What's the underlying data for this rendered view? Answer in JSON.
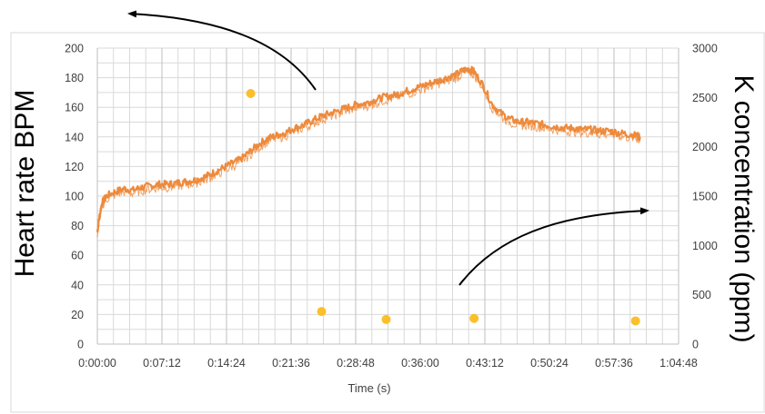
{
  "chart_data": {
    "type": "line",
    "title": "",
    "xlabel": "Time (s)",
    "ylabel_left": "Heart rate BPM",
    "ylabel_right": "K concentration (ppm)",
    "x_ticks": [
      "0:00:00",
      "0:07:12",
      "0:14:24",
      "0:21:36",
      "0:28:48",
      "0:36:00",
      "0:43:12",
      "0:50:24",
      "0:57:36",
      "1:04:48"
    ],
    "y_left_ticks": [
      "0",
      "20",
      "40",
      "60",
      "80",
      "100",
      "120",
      "140",
      "160",
      "180",
      "200"
    ],
    "y_right_ticks": [
      "0",
      "500",
      "1000",
      "1500",
      "2000",
      "2500",
      "3000"
    ],
    "x_unit": "minutes",
    "xlim": [
      0,
      64.8
    ],
    "ylim_left": [
      0,
      200
    ],
    "ylim_right": [
      0,
      3000
    ],
    "grid": true,
    "colors": {
      "heart_rate": "#ed8a3c",
      "k_concentration": "#fbbf2a",
      "grid": "#d9d9d9",
      "arrow": "#000000"
    },
    "series": [
      {
        "axis": "left",
        "style": "line",
        "x": [
          0.0,
          0.2,
          0.5,
          1.0,
          2.0,
          3.0,
          4.0,
          5.0,
          6.0,
          7.0,
          8.0,
          9.0,
          10.0,
          11.0,
          12.0,
          13.0,
          14.0,
          15.0,
          16.0,
          17.0,
          18.0,
          19.0,
          20.0,
          21.0,
          22.0,
          23.0,
          24.0,
          25.0,
          26.0,
          27.0,
          28.0,
          29.0,
          30.0,
          31.0,
          32.0,
          33.0,
          34.0,
          35.0,
          36.0,
          37.0,
          38.0,
          39.0,
          40.0,
          40.8,
          41.5,
          42.0,
          43.0,
          44.0,
          45.0,
          46.0,
          47.0,
          48.0,
          49.0,
          50.0,
          51.0,
          52.0,
          53.0,
          54.0,
          55.0,
          56.0,
          57.0,
          58.0,
          59.0,
          60.0,
          60.5
        ],
        "values": [
          76,
          85,
          95,
          100,
          103,
          105,
          104,
          106,
          107,
          108,
          108,
          109,
          110,
          111,
          113,
          116,
          119,
          122,
          125,
          130,
          135,
          139,
          141,
          143,
          146,
          148,
          151,
          154,
          156,
          158,
          160,
          162,
          163,
          165,
          167,
          168,
          170,
          172,
          174,
          176,
          178,
          180,
          182,
          185,
          186,
          184,
          175,
          162,
          156,
          152,
          150,
          150,
          149,
          148,
          147,
          146,
          146,
          145,
          145,
          144,
          144,
          143,
          142,
          141,
          140
        ]
      },
      {
        "axis": "right",
        "style": "scatter",
        "x": [
          17.1,
          25.0,
          32.2,
          42.0,
          60.0
        ],
        "values": [
          2540,
          330,
          250,
          260,
          235
        ]
      }
    ],
    "annotations": [
      "curved arrow pointing to left axis",
      "curved arrow pointing to right axis"
    ]
  }
}
